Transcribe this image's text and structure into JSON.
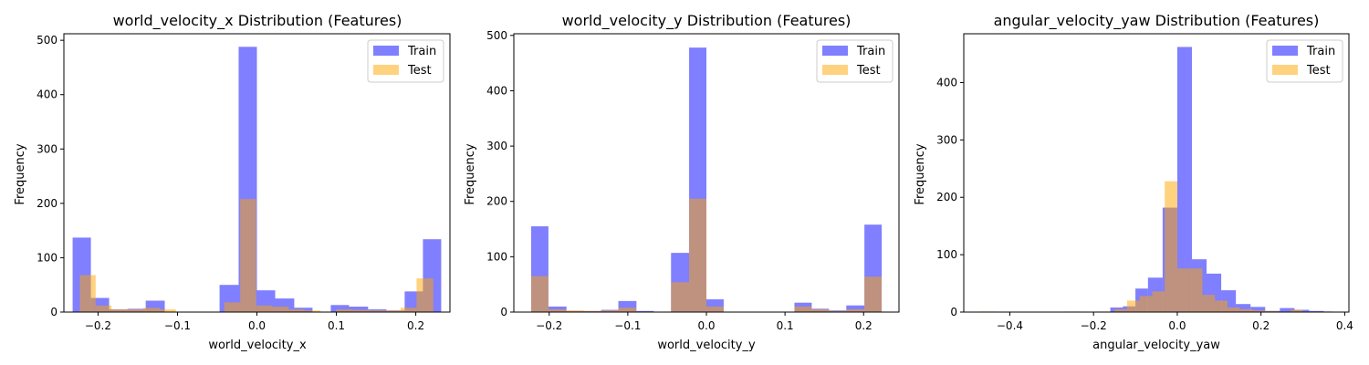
{
  "colors": {
    "train": "#0000ff",
    "test": "#ffa500",
    "bar_alpha": 0.5,
    "test_alpha": 0.5
  },
  "chart_data": [
    {
      "type": "bar",
      "title": "world_velocity_x Distribution (Features)",
      "xlabel": "world_velocity_x",
      "ylabel": "Frequency",
      "xlim": [
        -0.243,
        0.243
      ],
      "ylim": [
        0,
        512
      ],
      "xticks": [
        -0.2,
        -0.1,
        0.0,
        0.1,
        0.2
      ],
      "xtick_labels": [
        "−0.2",
        "−0.1",
        "0.0",
        "0.1",
        "0.2"
      ],
      "yticks": [
        0,
        100,
        200,
        300,
        400,
        500
      ],
      "ytick_labels": [
        "0",
        "100",
        "200",
        "300",
        "400",
        "500"
      ],
      "legend": {
        "placement": "top-right",
        "entries": [
          "Train",
          "Test"
        ]
      },
      "grid": false,
      "series": [
        {
          "name": "Train",
          "bins": [
            [
              -0.232,
              -0.209,
              137
            ],
            [
              -0.209,
              -0.186,
              26
            ],
            [
              -0.186,
              -0.163,
              5
            ],
            [
              -0.163,
              -0.14,
              6
            ],
            [
              -0.14,
              -0.116,
              21
            ],
            [
              -0.116,
              -0.093,
              0
            ],
            [
              -0.093,
              -0.07,
              0
            ],
            [
              -0.07,
              -0.047,
              0
            ],
            [
              -0.047,
              -0.023,
              50
            ],
            [
              -0.023,
              0.0,
              488
            ],
            [
              0.0,
              0.023,
              40
            ],
            [
              0.023,
              0.047,
              25
            ],
            [
              0.047,
              0.07,
              8
            ],
            [
              0.07,
              0.093,
              0
            ],
            [
              0.093,
              0.116,
              13
            ],
            [
              0.116,
              0.14,
              10
            ],
            [
              0.14,
              0.163,
              5
            ],
            [
              0.163,
              0.186,
              3
            ],
            [
              0.186,
              0.209,
              38
            ],
            [
              0.209,
              0.232,
              134
            ]
          ]
        },
        {
          "name": "Test",
          "bins": [
            [
              -0.223,
              -0.203,
              68
            ],
            [
              -0.203,
              -0.183,
              12
            ],
            [
              -0.183,
              -0.163,
              5
            ],
            [
              -0.163,
              -0.143,
              5
            ],
            [
              -0.143,
              -0.122,
              8
            ],
            [
              -0.122,
              -0.102,
              5
            ],
            [
              -0.102,
              -0.082,
              0
            ],
            [
              -0.082,
              -0.062,
              0
            ],
            [
              -0.062,
              -0.041,
              0
            ],
            [
              -0.041,
              -0.021,
              18
            ],
            [
              -0.021,
              -0.001,
              208
            ],
            [
              -0.001,
              0.019,
              12
            ],
            [
              0.019,
              0.04,
              10
            ],
            [
              0.04,
              0.06,
              5
            ],
            [
              0.06,
              0.08,
              3
            ],
            [
              0.08,
              0.1,
              0
            ],
            [
              0.1,
              0.121,
              5
            ],
            [
              0.121,
              0.141,
              4
            ],
            [
              0.141,
              0.161,
              3
            ],
            [
              0.161,
              0.181,
              3
            ],
            [
              0.181,
              0.201,
              8
            ],
            [
              0.201,
              0.222,
              62
            ]
          ]
        }
      ]
    },
    {
      "type": "bar",
      "title": "world_velocity_y Distribution (Features)",
      "xlabel": "world_velocity_y",
      "ylabel": "Frequency",
      "xlim": [
        -0.245,
        0.245
      ],
      "ylim": [
        0,
        503
      ],
      "xticks": [
        -0.2,
        -0.1,
        0.0,
        0.1,
        0.2
      ],
      "xtick_labels": [
        "−0.2",
        "−0.1",
        "0.0",
        "0.1",
        "0.2"
      ],
      "yticks": [
        0,
        100,
        200,
        300,
        400,
        500
      ],
      "ytick_labels": [
        "0",
        "100",
        "200",
        "300",
        "400",
        "500"
      ],
      "legend": {
        "placement": "top-right",
        "entries": [
          "Train",
          "Test"
        ]
      },
      "grid": false,
      "series": [
        {
          "name": "Train",
          "bins": [
            [
              -0.223,
              -0.201,
              155
            ],
            [
              -0.201,
              -0.178,
              10
            ],
            [
              -0.178,
              -0.156,
              2
            ],
            [
              -0.156,
              -0.134,
              2
            ],
            [
              -0.134,
              -0.112,
              4
            ],
            [
              -0.112,
              -0.089,
              20
            ],
            [
              -0.089,
              -0.067,
              2
            ],
            [
              -0.067,
              -0.045,
              0
            ],
            [
              -0.045,
              -0.022,
              107
            ],
            [
              -0.022,
              0.0,
              478
            ],
            [
              0.0,
              0.022,
              23
            ],
            [
              0.022,
              0.045,
              0
            ],
            [
              0.045,
              0.067,
              0
            ],
            [
              0.067,
              0.089,
              0
            ],
            [
              0.089,
              0.112,
              0
            ],
            [
              0.112,
              0.134,
              17
            ],
            [
              0.134,
              0.156,
              6
            ],
            [
              0.156,
              0.178,
              3
            ],
            [
              0.178,
              0.201,
              12
            ],
            [
              0.201,
              0.223,
              158
            ]
          ]
        },
        {
          "name": "Test",
          "bins": [
            [
              -0.223,
              -0.201,
              65
            ],
            [
              -0.201,
              -0.178,
              5
            ],
            [
              -0.178,
              -0.156,
              3
            ],
            [
              -0.156,
              -0.134,
              2
            ],
            [
              -0.134,
              -0.112,
              3
            ],
            [
              -0.112,
              -0.089,
              8
            ],
            [
              -0.089,
              -0.067,
              0
            ],
            [
              -0.067,
              -0.045,
              0
            ],
            [
              -0.045,
              -0.022,
              54
            ],
            [
              -0.022,
              0.0,
              205
            ],
            [
              0.0,
              0.022,
              10
            ],
            [
              0.022,
              0.045,
              0
            ],
            [
              0.045,
              0.067,
              0
            ],
            [
              0.067,
              0.089,
              0
            ],
            [
              0.089,
              0.112,
              0
            ],
            [
              0.112,
              0.134,
              10
            ],
            [
              0.134,
              0.156,
              5
            ],
            [
              0.156,
              0.178,
              2
            ],
            [
              0.178,
              0.201,
              5
            ],
            [
              0.201,
              0.223,
              64
            ]
          ]
        }
      ]
    },
    {
      "type": "bar",
      "title": "angular_velocity_yaw Distribution (Features)",
      "xlabel": "angular_velocity_yaw",
      "ylabel": "Frequency",
      "xlim": [
        -0.51,
        0.41
      ],
      "ylim": [
        0,
        485
      ],
      "xticks": [
        -0.4,
        -0.2,
        0.0,
        0.2,
        0.4
      ],
      "xtick_labels": [
        "−0.4",
        "−0.2",
        "0.0",
        "0.2",
        "0.4"
      ],
      "yticks": [
        0,
        100,
        200,
        300,
        400
      ],
      "ytick_labels": [
        "0",
        "100",
        "200",
        "300",
        "400"
      ],
      "legend": {
        "placement": "top-right",
        "entries": [
          "Train",
          "Test"
        ]
      },
      "grid": false,
      "series": [
        {
          "name": "Train",
          "bins": [
            [
              -0.16,
              -0.13,
              8
            ],
            [
              -0.13,
              -0.1,
              10
            ],
            [
              -0.1,
              -0.07,
              41
            ],
            [
              -0.07,
              -0.035,
              60
            ],
            [
              -0.035,
              0.0,
              182
            ],
            [
              0.0,
              0.035,
              462
            ],
            [
              0.035,
              0.07,
              92
            ],
            [
              0.07,
              0.105,
              67
            ],
            [
              0.105,
              0.14,
              38
            ],
            [
              0.14,
              0.175,
              14
            ],
            [
              0.175,
              0.21,
              9
            ],
            [
              0.21,
              0.245,
              2
            ],
            [
              0.245,
              0.28,
              7
            ],
            [
              0.28,
              0.315,
              4
            ],
            [
              0.315,
              0.35,
              2
            ],
            [
              0.35,
              0.37,
              1
            ]
          ]
        },
        {
          "name": "Test",
          "bins": [
            [
              -0.47,
              -0.43,
              1
            ],
            [
              -0.43,
              -0.39,
              0
            ],
            [
              -0.39,
              -0.35,
              0
            ],
            [
              -0.35,
              -0.31,
              0
            ],
            [
              -0.31,
              -0.27,
              0
            ],
            [
              -0.27,
              -0.23,
              1
            ],
            [
              -0.23,
              -0.19,
              0
            ],
            [
              -0.19,
              -0.15,
              1
            ],
            [
              -0.15,
              -0.12,
              5
            ],
            [
              -0.12,
              -0.09,
              20
            ],
            [
              -0.09,
              -0.06,
              28
            ],
            [
              -0.06,
              -0.03,
              36
            ],
            [
              -0.03,
              0.0,
              228
            ],
            [
              0.0,
              0.03,
              76
            ],
            [
              0.03,
              0.06,
              76
            ],
            [
              0.06,
              0.09,
              30
            ],
            [
              0.09,
              0.12,
              20
            ],
            [
              0.12,
              0.15,
              8
            ],
            [
              0.15,
              0.18,
              5
            ],
            [
              0.18,
              0.21,
              3
            ],
            [
              0.21,
              0.24,
              2
            ],
            [
              0.24,
              0.27,
              1
            ],
            [
              0.27,
              0.3,
              4
            ]
          ]
        }
      ]
    }
  ]
}
